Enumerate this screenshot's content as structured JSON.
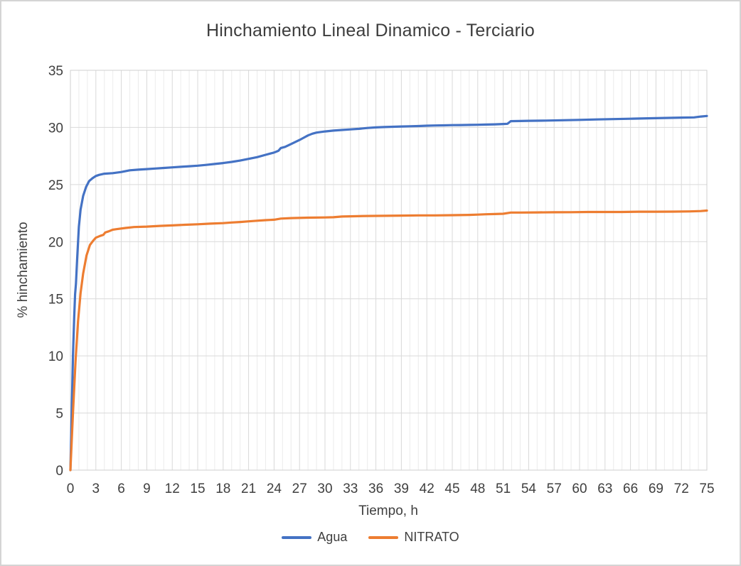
{
  "window": {
    "background": "#ffffff",
    "border_color": "#d4d4d4",
    "text_color": "#3f3f3f"
  },
  "chart_data": {
    "type": "line",
    "title": "Hinchamiento Lineal Dinamico - Terciario",
    "xlabel": "Tiempo, h",
    "ylabel": "% hinchamiento",
    "xlim": [
      0,
      75
    ],
    "ylim": [
      0,
      35
    ],
    "x_ticks": [
      0,
      3,
      6,
      9,
      12,
      15,
      18,
      21,
      24,
      27,
      30,
      33,
      36,
      39,
      42,
      45,
      48,
      51,
      54,
      57,
      60,
      63,
      66,
      69,
      72,
      75
    ],
    "y_ticks": [
      0,
      5,
      10,
      15,
      20,
      25,
      30,
      35
    ],
    "x_minor_step": 1,
    "grid": {
      "major_color": "#d9d9d9",
      "minor_color": "#ececec",
      "border_color": "#cfcfcf",
      "horizontal_color": "#d9d9d9"
    },
    "legend_position": "bottom-center",
    "series": [
      {
        "name": "Agua",
        "color": "#4472C4",
        "points": [
          [
            0,
            0
          ],
          [
            0.15,
            5
          ],
          [
            0.3,
            10
          ],
          [
            0.45,
            13.5
          ],
          [
            0.55,
            15.4
          ],
          [
            0.65,
            16.3
          ],
          [
            0.8,
            18.5
          ],
          [
            1.0,
            21.3
          ],
          [
            1.2,
            22.8
          ],
          [
            1.5,
            24.0
          ],
          [
            1.85,
            24.8
          ],
          [
            2.2,
            25.3
          ],
          [
            2.6,
            25.55
          ],
          [
            3.0,
            25.75
          ],
          [
            3.4,
            25.85
          ],
          [
            4,
            25.95
          ],
          [
            5,
            26.0
          ],
          [
            6,
            26.1
          ],
          [
            7,
            26.25
          ],
          [
            8,
            26.3
          ],
          [
            9,
            26.35
          ],
          [
            10,
            26.4
          ],
          [
            11,
            26.45
          ],
          [
            12,
            26.5
          ],
          [
            13,
            26.55
          ],
          [
            14,
            26.6
          ],
          [
            15,
            26.65
          ],
          [
            16,
            26.72
          ],
          [
            17,
            26.8
          ],
          [
            18,
            26.88
          ],
          [
            19,
            26.98
          ],
          [
            20,
            27.1
          ],
          [
            21,
            27.25
          ],
          [
            22,
            27.4
          ],
          [
            23,
            27.6
          ],
          [
            24,
            27.8
          ],
          [
            24.5,
            27.95
          ],
          [
            24.8,
            28.2
          ],
          [
            25.3,
            28.3
          ],
          [
            26,
            28.55
          ],
          [
            27,
            28.9
          ],
          [
            27.5,
            29.1
          ],
          [
            28,
            29.3
          ],
          [
            28.5,
            29.45
          ],
          [
            29,
            29.55
          ],
          [
            30,
            29.65
          ],
          [
            31,
            29.72
          ],
          [
            32,
            29.78
          ],
          [
            33,
            29.83
          ],
          [
            34,
            29.88
          ],
          [
            35,
            29.95
          ],
          [
            36,
            30.0
          ],
          [
            37,
            30.03
          ],
          [
            38,
            30.06
          ],
          [
            39,
            30.08
          ],
          [
            40,
            30.1
          ],
          [
            41,
            30.12
          ],
          [
            42,
            30.15
          ],
          [
            43,
            30.17
          ],
          [
            44,
            30.18
          ],
          [
            45,
            30.2
          ],
          [
            46,
            30.21
          ],
          [
            47,
            30.22
          ],
          [
            48,
            30.23
          ],
          [
            49,
            30.25
          ],
          [
            50,
            30.27
          ],
          [
            51,
            30.3
          ],
          [
            51.5,
            30.32
          ],
          [
            51.9,
            30.55
          ],
          [
            53,
            30.56
          ],
          [
            54,
            30.58
          ],
          [
            56,
            30.6
          ],
          [
            58,
            30.63
          ],
          [
            60,
            30.66
          ],
          [
            62,
            30.7
          ],
          [
            64,
            30.73
          ],
          [
            66,
            30.76
          ],
          [
            68,
            30.8
          ],
          [
            70,
            30.83
          ],
          [
            72,
            30.86
          ],
          [
            73.5,
            30.88
          ],
          [
            74.3,
            30.95
          ],
          [
            75,
            31.0
          ]
        ]
      },
      {
        "name": "NITRATO",
        "color": "#ED7D31",
        "points": [
          [
            0,
            0
          ],
          [
            0.3,
            5
          ],
          [
            0.6,
            9.5
          ],
          [
            0.9,
            13
          ],
          [
            1.2,
            15.5
          ],
          [
            1.5,
            17.2
          ],
          [
            1.9,
            18.8
          ],
          [
            2.3,
            19.7
          ],
          [
            2.7,
            20.1
          ],
          [
            3.0,
            20.35
          ],
          [
            3.5,
            20.5
          ],
          [
            3.9,
            20.6
          ],
          [
            4.1,
            20.8
          ],
          [
            4.5,
            20.9
          ],
          [
            5,
            21.05
          ],
          [
            5.5,
            21.1
          ],
          [
            6.5,
            21.2
          ],
          [
            7.5,
            21.28
          ],
          [
            9,
            21.32
          ],
          [
            10.5,
            21.38
          ],
          [
            12,
            21.42
          ],
          [
            13.5,
            21.48
          ],
          [
            15,
            21.52
          ],
          [
            16.5,
            21.58
          ],
          [
            18,
            21.62
          ],
          [
            19,
            21.68
          ],
          [
            20,
            21.72
          ],
          [
            21,
            21.78
          ],
          [
            22,
            21.83
          ],
          [
            23,
            21.88
          ],
          [
            24,
            21.92
          ],
          [
            24.8,
            22.02
          ],
          [
            26,
            22.06
          ],
          [
            28,
            22.1
          ],
          [
            30,
            22.12
          ],
          [
            31,
            22.14
          ],
          [
            32,
            22.2
          ],
          [
            33,
            22.22
          ],
          [
            35,
            22.25
          ],
          [
            37,
            22.26
          ],
          [
            39,
            22.28
          ],
          [
            41,
            22.3
          ],
          [
            43,
            22.3
          ],
          [
            45,
            22.32
          ],
          [
            47,
            22.34
          ],
          [
            48,
            22.37
          ],
          [
            49,
            22.4
          ],
          [
            50,
            22.42
          ],
          [
            51,
            22.44
          ],
          [
            51.9,
            22.55
          ],
          [
            53,
            22.55
          ],
          [
            55,
            22.56
          ],
          [
            57,
            22.57
          ],
          [
            59,
            22.58
          ],
          [
            61,
            22.6
          ],
          [
            63,
            22.6
          ],
          [
            65,
            22.6
          ],
          [
            67,
            22.62
          ],
          [
            69,
            22.62
          ],
          [
            71,
            22.63
          ],
          [
            73,
            22.65
          ],
          [
            74.3,
            22.68
          ],
          [
            75,
            22.72
          ]
        ]
      }
    ]
  }
}
